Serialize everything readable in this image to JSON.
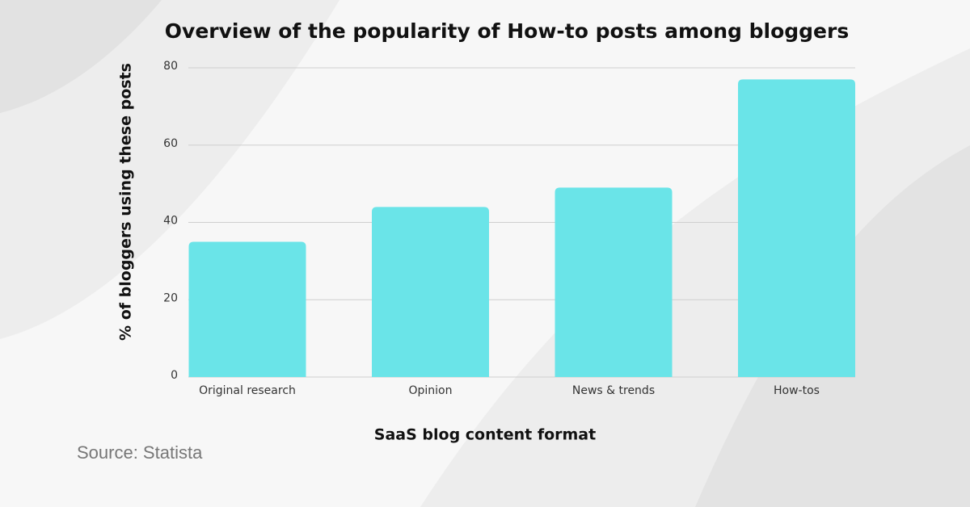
{
  "chart_data": {
    "type": "bar",
    "title": "Overview of the popularity of How-to posts among bloggers",
    "x_label": "SaaS blog content format",
    "y_label": "% of bloggers using these posts",
    "source": "Source: Statista",
    "categories": [
      "Original research",
      "Opinion",
      "News & trends",
      "How-tos"
    ],
    "values": [
      35,
      44,
      49,
      77
    ],
    "color": "#6ae4e8",
    "ylim": [
      0,
      80
    ],
    "yticks": [
      0,
      20,
      40,
      60,
      80
    ],
    "grid": true
  }
}
